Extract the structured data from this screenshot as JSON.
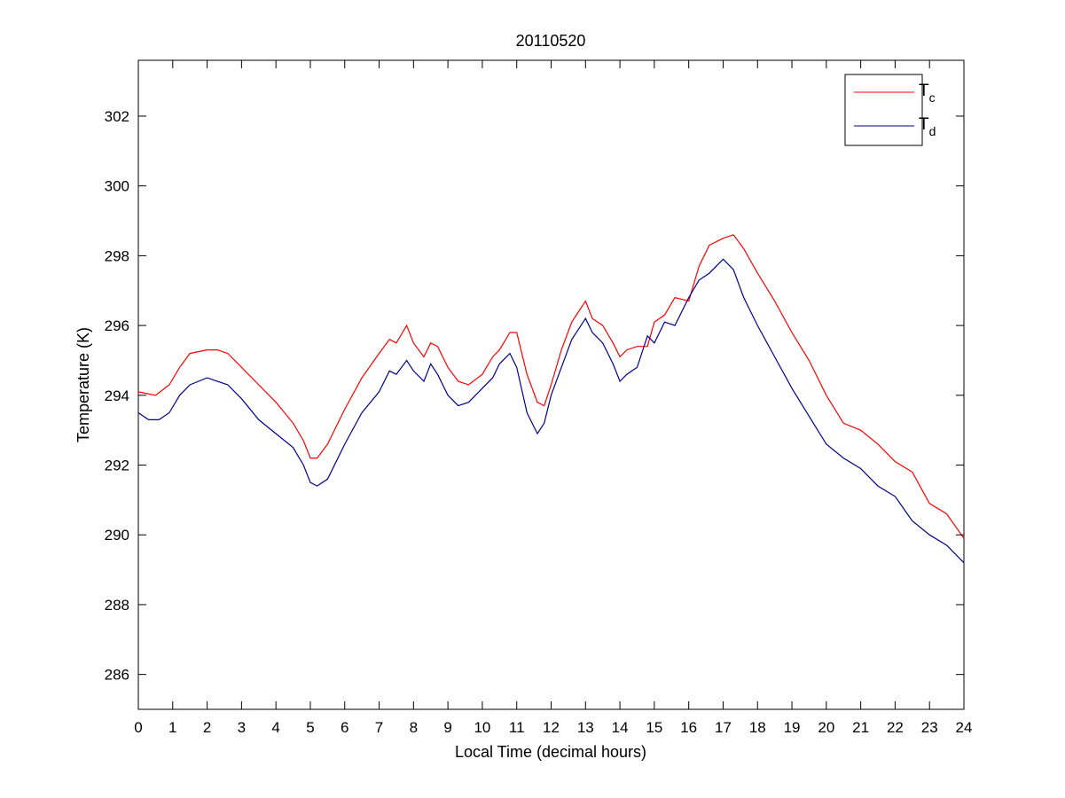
{
  "chart_data": {
    "type": "line",
    "title": "20110520",
    "xlabel": "Local Time (decimal hours)",
    "ylabel": "Temperature (K)",
    "xlim": [
      0,
      24
    ],
    "ylim": [
      285,
      303.6
    ],
    "x_ticks": [
      "0",
      "1",
      "2",
      "3",
      "4",
      "5",
      "6",
      "7",
      "8",
      "9",
      "10",
      "11",
      "12",
      "13",
      "14",
      "15",
      "16",
      "17",
      "18",
      "19",
      "20",
      "21",
      "22",
      "23",
      "24"
    ],
    "y_ticks": [
      "286",
      "288",
      "290",
      "292",
      "294",
      "296",
      "298",
      "300",
      "302"
    ],
    "grid": false,
    "legend_position": "top-right",
    "series": [
      {
        "name": "T",
        "name_subscript": "c",
        "color": "#ff0000",
        "x": [
          0,
          0.5,
          0.9,
          1.2,
          1.5,
          2.0,
          2.3,
          2.6,
          3.0,
          3.5,
          4.0,
          4.5,
          4.8,
          5.0,
          5.2,
          5.5,
          6.0,
          6.5,
          7.0,
          7.3,
          7.5,
          7.8,
          8.0,
          8.3,
          8.5,
          8.7,
          9.0,
          9.3,
          9.6,
          10.0,
          10.3,
          10.5,
          10.8,
          11.0,
          11.3,
          11.6,
          11.8,
          12.0,
          12.3,
          12.6,
          13.0,
          13.2,
          13.5,
          13.8,
          14.0,
          14.2,
          14.5,
          14.8,
          15.0,
          15.3,
          15.6,
          16.0,
          16.3,
          16.6,
          17.0,
          17.3,
          17.6,
          18.0,
          18.5,
          19.0,
          19.5,
          20.0,
          20.5,
          21.0,
          21.5,
          22.0,
          22.5,
          23.0,
          23.5,
          24.0
        ],
        "y": [
          294.1,
          294.0,
          294.3,
          294.8,
          295.2,
          295.3,
          295.3,
          295.2,
          294.8,
          294.3,
          293.8,
          293.2,
          292.7,
          292.2,
          292.2,
          292.6,
          293.6,
          294.5,
          295.2,
          295.6,
          295.5,
          296.0,
          295.5,
          295.1,
          295.5,
          295.4,
          294.8,
          294.4,
          294.3,
          294.6,
          295.1,
          295.3,
          295.8,
          295.8,
          294.6,
          293.8,
          293.7,
          294.3,
          295.3,
          296.1,
          296.7,
          296.2,
          296.0,
          295.5,
          295.1,
          295.3,
          295.4,
          295.4,
          296.1,
          296.3,
          296.8,
          296.7,
          297.7,
          298.3,
          298.5,
          298.6,
          298.2,
          297.5,
          296.7,
          295.8,
          295.0,
          294.0,
          293.2,
          293.0,
          292.6,
          292.1,
          291.8,
          290.9,
          290.6,
          289.9
        ]
      },
      {
        "name": "T",
        "name_subscript": "d",
        "color": "#00008b",
        "x": [
          0,
          0.3,
          0.6,
          0.9,
          1.2,
          1.5,
          2.0,
          2.3,
          2.6,
          3.0,
          3.5,
          4.0,
          4.5,
          4.8,
          5.0,
          5.2,
          5.5,
          6.0,
          6.5,
          7.0,
          7.3,
          7.5,
          7.8,
          8.0,
          8.3,
          8.5,
          8.7,
          9.0,
          9.3,
          9.6,
          10.0,
          10.3,
          10.5,
          10.8,
          11.0,
          11.3,
          11.6,
          11.8,
          12.0,
          12.3,
          12.6,
          13.0,
          13.2,
          13.5,
          13.8,
          14.0,
          14.2,
          14.5,
          14.8,
          15.0,
          15.3,
          15.6,
          16.0,
          16.3,
          16.6,
          17.0,
          17.3,
          17.6,
          18.0,
          18.5,
          19.0,
          19.5,
          20.0,
          20.5,
          21.0,
          21.5,
          22.0,
          22.5,
          23.0,
          23.5,
          24.0
        ],
        "y": [
          293.5,
          293.3,
          293.3,
          293.5,
          294.0,
          294.3,
          294.5,
          294.4,
          294.3,
          293.9,
          293.3,
          292.9,
          292.5,
          292.0,
          291.5,
          291.4,
          291.6,
          292.6,
          293.5,
          294.1,
          294.7,
          294.6,
          295.0,
          294.7,
          294.4,
          294.9,
          294.6,
          294.0,
          293.7,
          293.8,
          294.2,
          294.5,
          294.9,
          295.2,
          294.8,
          293.5,
          292.9,
          293.2,
          294.0,
          294.8,
          295.6,
          296.2,
          295.8,
          295.5,
          294.9,
          294.4,
          294.6,
          294.8,
          295.7,
          295.5,
          296.1,
          296.0,
          296.8,
          297.3,
          297.5,
          297.9,
          297.6,
          296.8,
          296.0,
          295.1,
          294.2,
          293.4,
          292.6,
          292.2,
          291.9,
          291.4,
          291.1,
          290.4,
          290.0,
          289.7,
          289.2
        ]
      }
    ]
  }
}
